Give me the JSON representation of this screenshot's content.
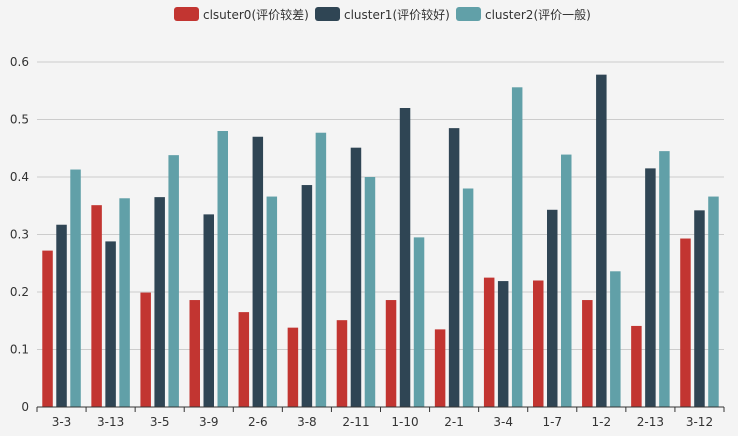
{
  "chart_data": {
    "type": "bar",
    "categories": [
      "3-3",
      "3-13",
      "3-5",
      "3-9",
      "2-6",
      "3-8",
      "2-11",
      "1-10",
      "2-1",
      "3-4",
      "1-7",
      "1-2",
      "2-13",
      "3-12"
    ],
    "series": [
      {
        "name": "clsuter0(评价较差)",
        "color": "#c23531",
        "values": [
          0.272,
          0.351,
          0.199,
          0.186,
          0.165,
          0.138,
          0.151,
          0.186,
          0.135,
          0.225,
          0.22,
          0.186,
          0.141,
          0.293
        ]
      },
      {
        "name": "cluster1(评价较好)",
        "color": "#2f4554",
        "values": [
          0.317,
          0.288,
          0.365,
          0.335,
          0.47,
          0.386,
          0.451,
          0.52,
          0.485,
          0.219,
          0.343,
          0.578,
          0.415,
          0.342
        ]
      },
      {
        "name": "cluster2(评价一般)",
        "color": "#61a0a8",
        "values": [
          0.413,
          0.363,
          0.438,
          0.48,
          0.366,
          0.477,
          0.4,
          0.295,
          0.38,
          0.556,
          0.439,
          0.236,
          0.445,
          0.366
        ]
      }
    ],
    "ylim": [
      0,
      0.6
    ],
    "yticks": [
      "0",
      "0.1",
      "0.2",
      "0.3",
      "0.4",
      "0.5",
      "0.6"
    ],
    "grid": true,
    "legend_position": "top-center",
    "title": "",
    "xlabel": "",
    "ylabel": ""
  }
}
